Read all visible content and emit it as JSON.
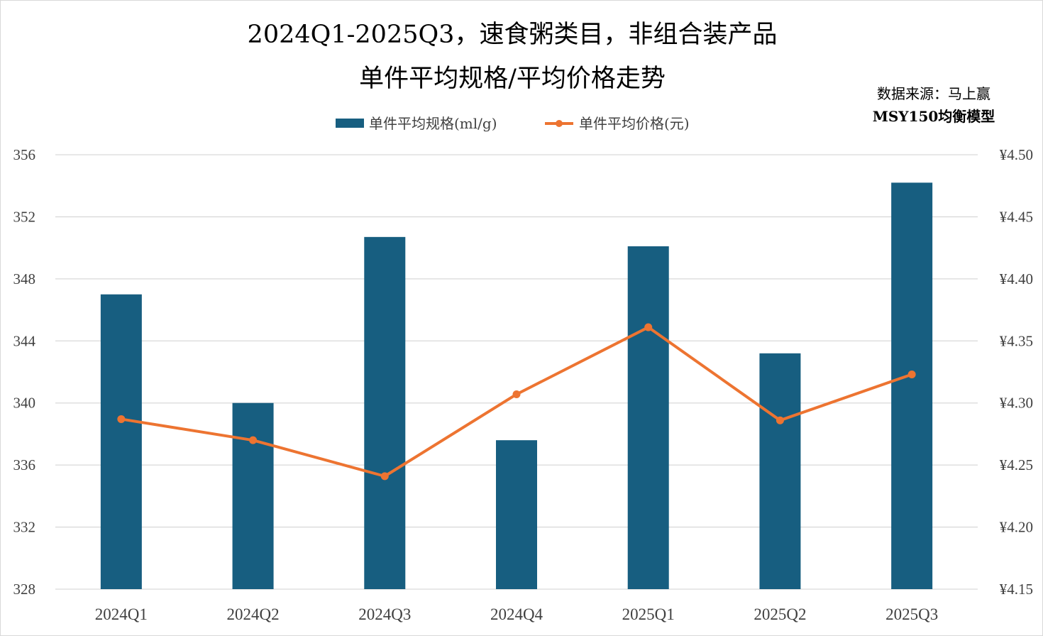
{
  "chart_data": {
    "type": "bar+line",
    "title": [
      "2024Q1-2025Q3，速食粥类目，非组合装产品",
      "单件平均规格/平均价格走势"
    ],
    "source": [
      "数据来源：马上赢",
      "MSY150均衡模型"
    ],
    "categories": [
      "2024Q1",
      "2024Q2",
      "2024Q3",
      "2024Q4",
      "2025Q1",
      "2025Q2",
      "2025Q3"
    ],
    "series": [
      {
        "name": "单件平均规格(ml/g)",
        "type": "bar",
        "axis": "left",
        "color": "#175e80",
        "values": [
          347.0,
          340.0,
          350.7,
          337.6,
          350.1,
          343.2,
          354.2
        ]
      },
      {
        "name": "单件平均价格(元)",
        "type": "line",
        "axis": "right",
        "color": "#ed7431",
        "values": [
          4.287,
          4.27,
          4.241,
          4.307,
          4.361,
          4.286,
          4.323
        ]
      }
    ],
    "left_axis": {
      "min": 328,
      "max": 356,
      "ticks": [
        "328",
        "332",
        "336",
        "340",
        "344",
        "348",
        "352",
        "356"
      ]
    },
    "right_axis": {
      "min": 4.15,
      "max": 4.5,
      "ticks": [
        "¥4.15",
        "¥4.20",
        "¥4.25",
        "¥4.30",
        "¥4.35",
        "¥4.40",
        "¥4.45",
        "¥4.50"
      ]
    },
    "grid": true,
    "legend_position": "top-center"
  }
}
